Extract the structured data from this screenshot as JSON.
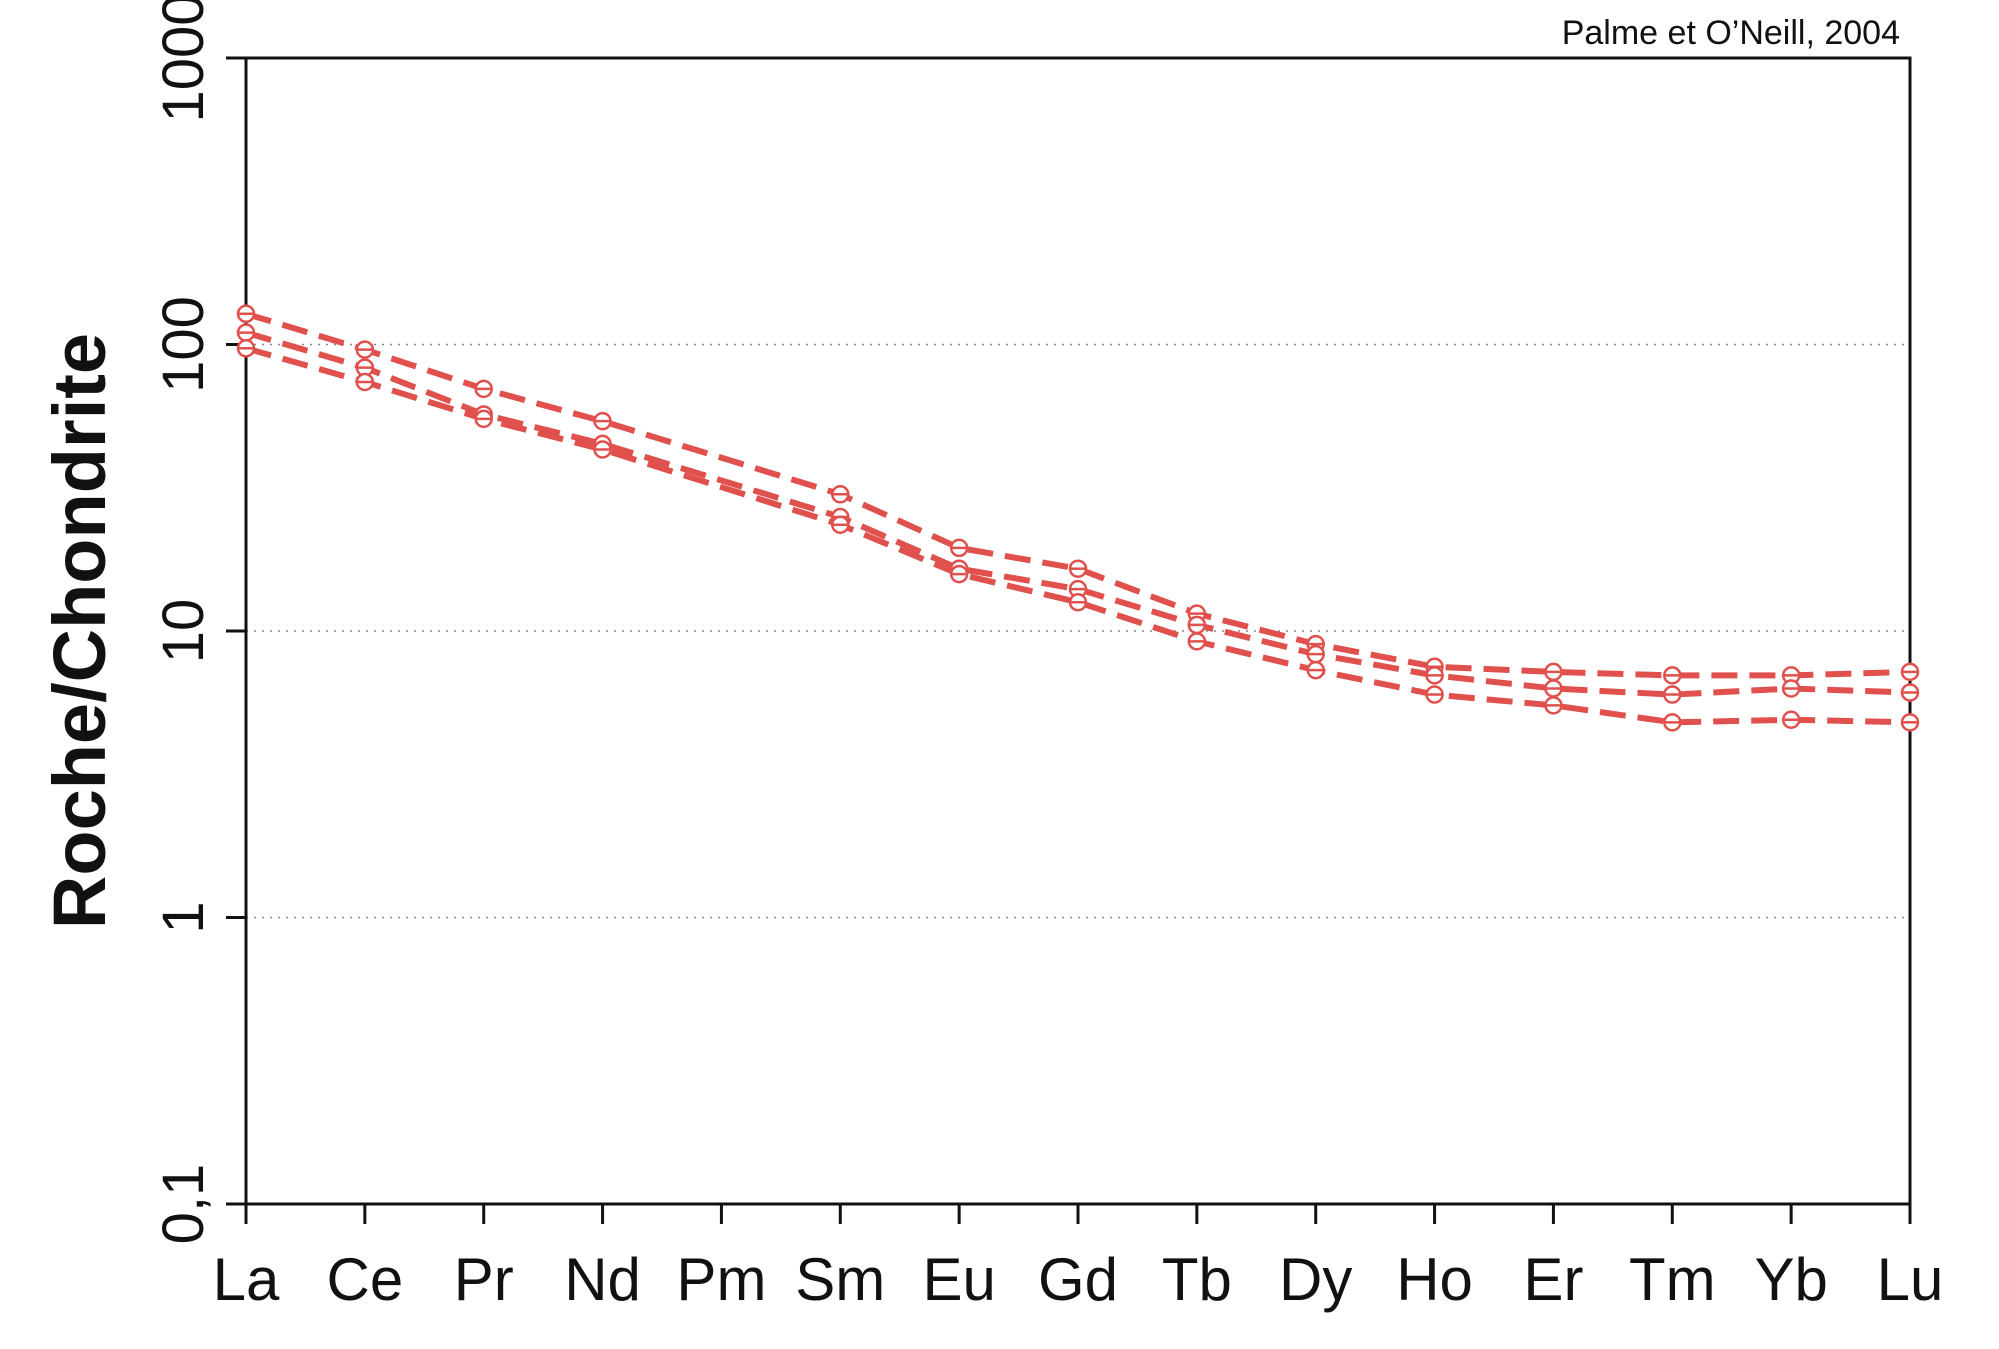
{
  "chart_data": {
    "type": "line",
    "source_note": "Palme et O’Neill, 2004",
    "ylabel": "Roche/Chondrite",
    "y_scale": "log",
    "ylim": [
      0.1,
      1000
    ],
    "y_ticks": [
      0.1,
      1,
      10,
      100,
      1000
    ],
    "y_tick_labels": [
      "0,1",
      "1",
      "10",
      "100",
      "1000"
    ],
    "y_grid_values": [
      1,
      10,
      100
    ],
    "categories": [
      "La",
      "Ce",
      "Pr",
      "Nd",
      "Pm",
      "Sm",
      "Eu",
      "Gd",
      "Tb",
      "Dy",
      "Ho",
      "Er",
      "Tm",
      "Yb",
      "Lu"
    ],
    "line_color": "#e0504c",
    "line_style": "dashed",
    "marker": "open-circle",
    "series": [
      {
        "values": [
          128,
          96,
          70,
          54,
          null,
          30,
          19.5,
          16.5,
          11.5,
          9,
          7.5,
          7.2,
          7,
          7,
          7.2
        ]
      },
      {
        "values": [
          110,
          83,
          57,
          45,
          null,
          25,
          16.5,
          14,
          10.5,
          8.3,
          7,
          6.3,
          6,
          6.3,
          6.1
        ]
      },
      {
        "values": [
          97,
          74,
          55,
          43,
          null,
          23.5,
          15.8,
          12.6,
          9.2,
          7.3,
          6,
          5.5,
          4.8,
          4.9,
          4.8
        ]
      }
    ]
  }
}
